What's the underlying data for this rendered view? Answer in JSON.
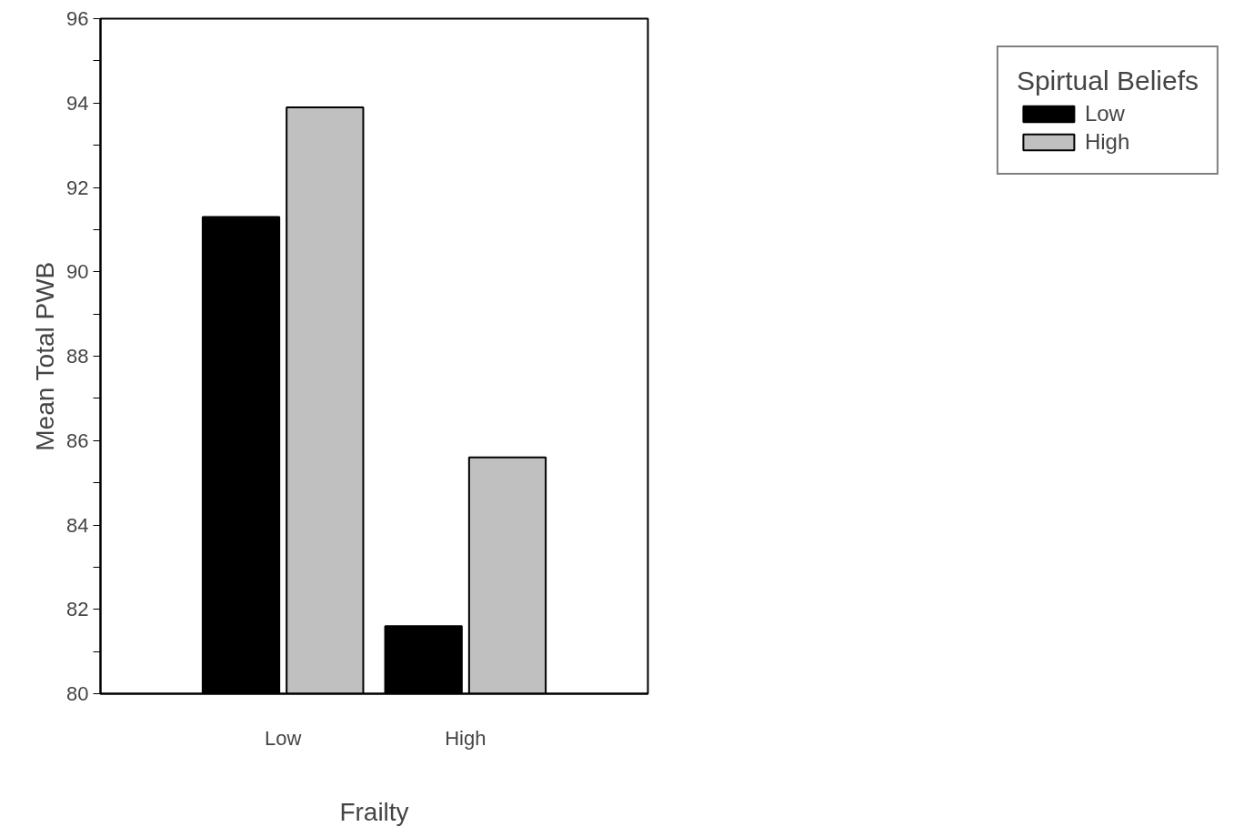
{
  "chart_data": {
    "type": "bar",
    "xlabel": "Frailty",
    "ylabel": "Mean Total PWB",
    "legend_title": "Spirtual Beliefs",
    "categories": [
      "Low",
      "High"
    ],
    "series": [
      {
        "name": "Low",
        "color": "#000000",
        "values": [
          91.3,
          81.6
        ]
      },
      {
        "name": "High",
        "color": "#c0c0c0",
        "values": [
          93.9,
          85.6
        ]
      }
    ],
    "ylim": [
      80,
      96
    ],
    "yticks": [
      80,
      {
        "value": 81,
        "label": null
      },
      82,
      {
        "value": 83,
        "label": null
      },
      84,
      {
        "value": 85,
        "label": null
      },
      86,
      {
        "value": 87,
        "label": null
      },
      88,
      {
        "value": 89,
        "label": null
      },
      90,
      {
        "value": 91,
        "label": null
      },
      92,
      {
        "value": 93,
        "label": null
      },
      94,
      {
        "value": 95,
        "label": null
      },
      96
    ],
    "grid": false,
    "legend": "right"
  }
}
